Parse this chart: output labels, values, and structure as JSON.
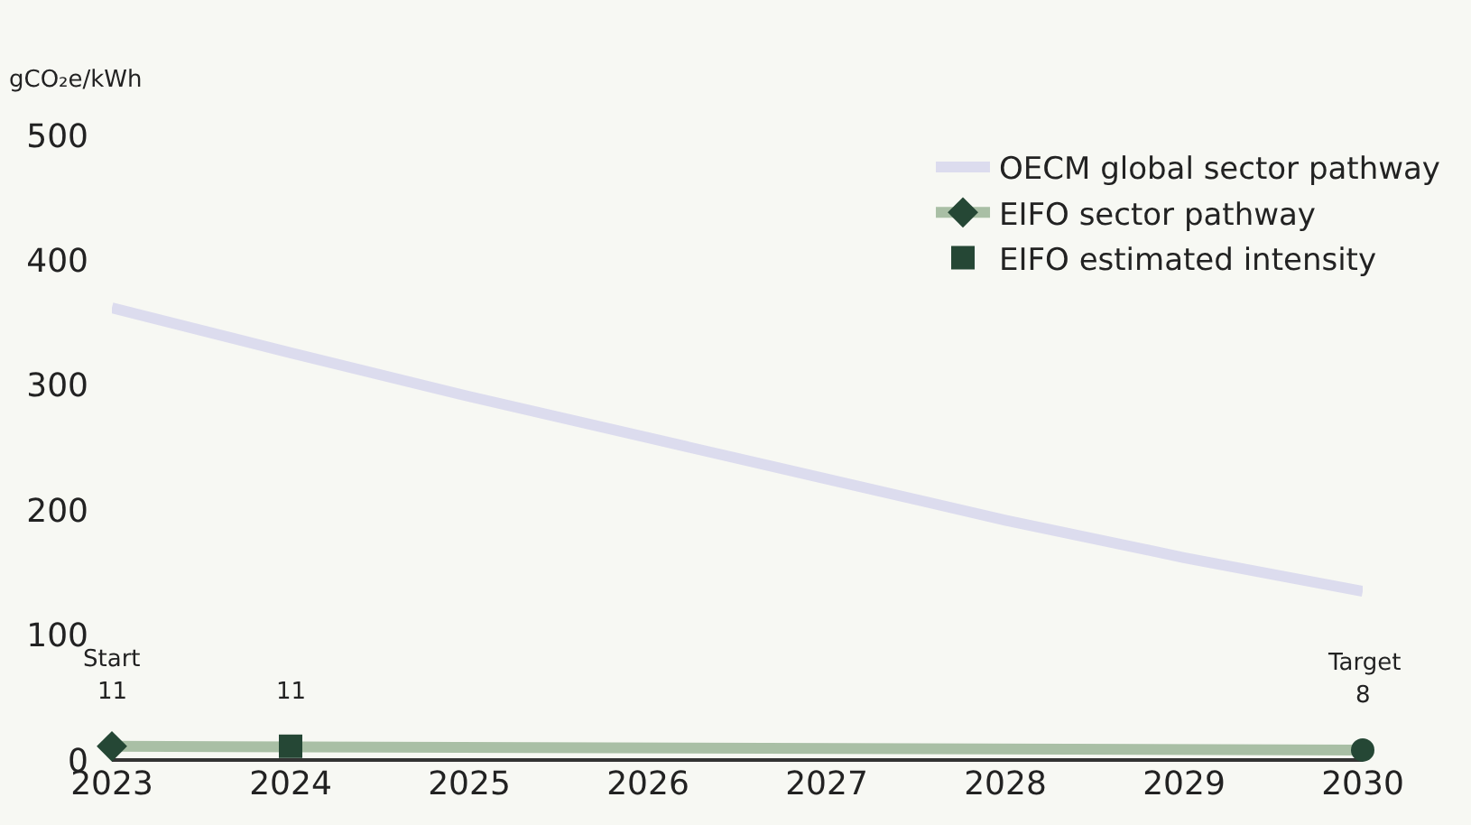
{
  "chart_data": {
    "type": "line",
    "ylabel": "gCO₂e/kWh",
    "x": [
      2023,
      2024,
      2025,
      2026,
      2027,
      2028,
      2029,
      2030
    ],
    "series": [
      {
        "name": "OECM global sector pathway",
        "color": "#dcdcee",
        "values": [
          362,
          326,
          291,
          258,
          225,
          192,
          162,
          135
        ],
        "marker": "none"
      },
      {
        "name": "EIFO sector pathway",
        "color": "#a9bfa5",
        "x": [
          2023,
          2030
        ],
        "values": [
          11,
          8
        ],
        "marker": [
          "diamond",
          "circle"
        ],
        "colors": [
          "#254735",
          "#254735"
        ],
        "value_labels": [
          "11",
          "8"
        ]
      },
      {
        "name": "EIFO estimated intensity",
        "type": "scatter",
        "color": "#254735",
        "x": [
          2024
        ],
        "values": [
          11
        ],
        "marker": "square",
        "value_labels": [
          "11"
        ]
      }
    ],
    "annotations": [
      "Start",
      "Target"
    ],
    "xlim": [
      2023,
      2030
    ],
    "xticks": [
      2023,
      2024,
      2025,
      2026,
      2027,
      2028,
      2029,
      2030
    ],
    "ylim": [
      0,
      500
    ],
    "yticks": [
      0,
      100,
      200,
      300,
      400,
      500
    ],
    "grid": false,
    "legend": "top right"
  }
}
